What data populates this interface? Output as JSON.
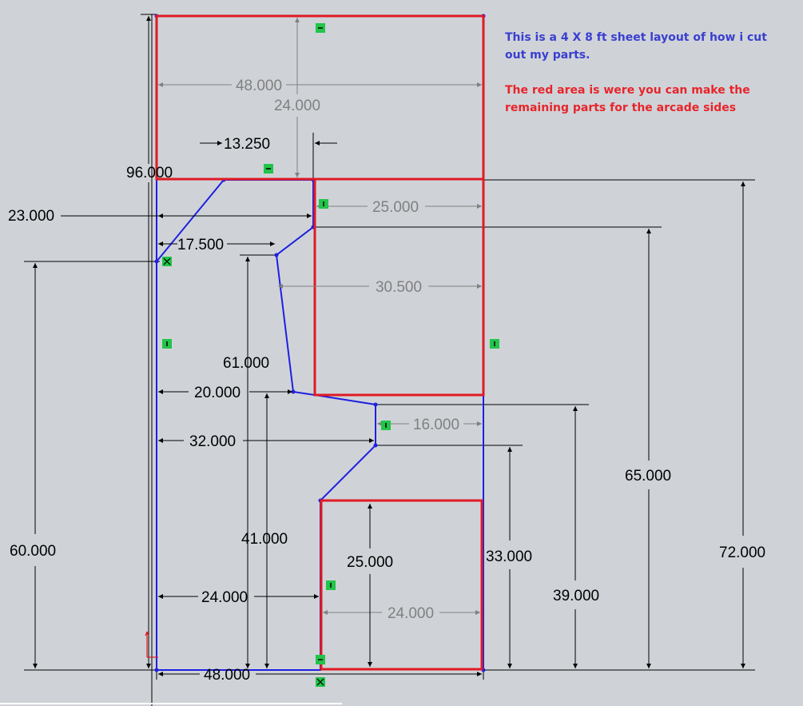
{
  "notes": {
    "blue": "This is a 4 X 8 ft sheet layout of how i cut out my parts.",
    "red": "The red area is were you can make the remaining parts for the arcade sides"
  },
  "dimensions": {
    "d_48_top": "48.000",
    "d_24_top": "24.000",
    "d_13_250": "13.250",
    "d_96": "96.000",
    "d_23": "23.000",
    "d_25_right": "25.000",
    "d_17_5": "17.500",
    "d_30_5": "30.500",
    "d_61": "61.000",
    "d_20": "20.000",
    "d_16": "16.000",
    "d_32": "32.000",
    "d_65": "65.000",
    "d_60": "60.000",
    "d_41": "41.000",
    "d_25_low": "25.000",
    "d_33": "33.000",
    "d_72": "72.000",
    "d_39": "39.000",
    "d_24_left": "24.000",
    "d_24_bottom": "24.000",
    "d_48_bottom": "48.000"
  },
  "colors": {
    "background": "#cfd3d8",
    "outline_blue": "#1f1fe0",
    "region_red": "#e01b24",
    "dim_black": "#000000",
    "dim_gray": "#808080",
    "marker_green": "#22c44a"
  }
}
